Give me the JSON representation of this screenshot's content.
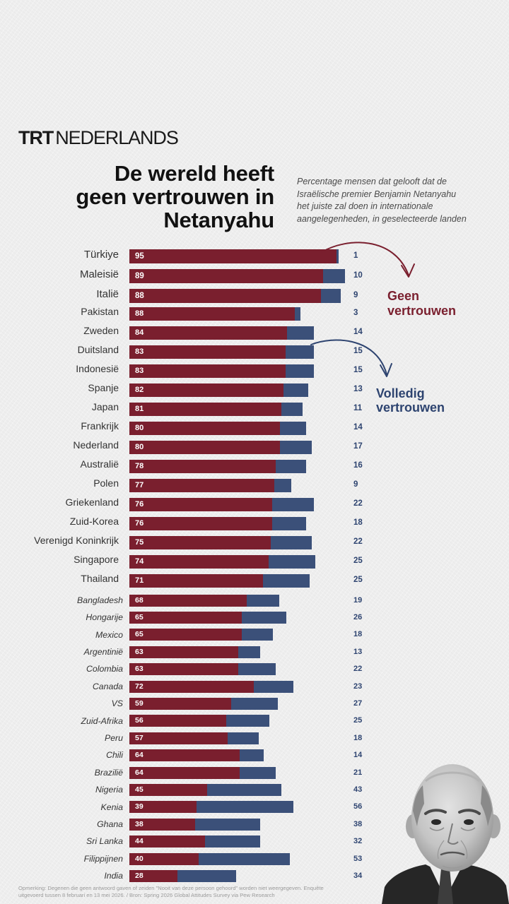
{
  "brand": {
    "logo_bold": "TRT",
    "logo_light": "NEDERLANDS"
  },
  "chart_data": {
    "type": "bar",
    "orientation": "horizontal",
    "stacked": true,
    "title_lines": [
      "De wereld heeft",
      "geen vertrouwen in",
      "Netanyahu"
    ],
    "subtitle_lines": [
      "Percentage mensen dat gelooft dat de",
      "Israëlische premier Benjamin Netanyahu",
      "het juiste zal doen in internationale",
      "aangelegenheden, in geselecteerde landen"
    ],
    "categories": [
      "Türkiye",
      "Maleisië",
      "Italië",
      "Pakistan",
      "Zweden",
      "Duitsland",
      "Indonesië",
      "Spanje",
      "Japan",
      "Frankrijk",
      "Nederland",
      "Australië",
      "Polen",
      "Griekenland",
      "Zuid-Korea",
      "Verenigd Koninkrijk",
      "Singapore",
      "Thailand",
      "Bangladesh",
      "Hongarije",
      "Mexico",
      "Argentinië",
      "Colombia",
      "Canada",
      "VS",
      "Zuid-Afrika",
      "Peru",
      "Chili",
      "Brazilië",
      "Nigeria",
      "Kenia",
      "Ghana",
      "Sri Lanka",
      "Filippijnen",
      "India"
    ],
    "series": [
      {
        "name": "Geen vertrouwen",
        "color": "#7a1f2e",
        "values": [
          95,
          89,
          88,
          88,
          84,
          83,
          83,
          82,
          81,
          80,
          80,
          78,
          77,
          76,
          76,
          75,
          74,
          71,
          68,
          65,
          65,
          63,
          63,
          72,
          59,
          56,
          57,
          64,
          64,
          45,
          39,
          38,
          44,
          40,
          28
        ]
      },
      {
        "name": "Volledig vertrouwen",
        "color": "#3b5079",
        "values": [
          1,
          10,
          9,
          3,
          14,
          15,
          15,
          13,
          11,
          14,
          17,
          16,
          9,
          22,
          18,
          22,
          25,
          25,
          19,
          26,
          18,
          13,
          22,
          23,
          27,
          25,
          18,
          14,
          21,
          43,
          56,
          38,
          32,
          53,
          34
        ]
      }
    ],
    "grid": false,
    "legend_position": "right",
    "footnote_lines": [
      "Opmerking: Degenen die geen antwoord gaven of zeiden \"Nooit van deze persoon gehoord\" worden niet weergegeven. Enquête",
      "uitgevoerd tussen 8 februari en 13 mei 2026. / Bron: Spring 2026 Global Attitudes Survey via Pew Research"
    ]
  }
}
